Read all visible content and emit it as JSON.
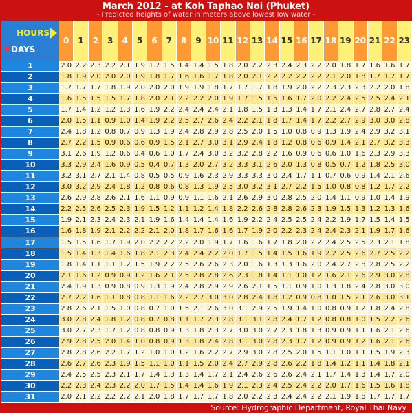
{
  "title": "March 2012 - at Koh Taphao Noi (Phuket)",
  "subtitle": "- Predicted heights of water in meters above lowest low water -",
  "corner": {
    "hours_label": "HOURS",
    "days_label": "DAYS"
  },
  "source": "Source: Hydrographic Department, Royal Thai Navy",
  "colors": {
    "frame": "#cc1111",
    "hour_odd": "#ff9933",
    "hour_even": "#fff07a",
    "day_bg": "#1f86e0",
    "row_light": "#fff8d8",
    "row_dark": "#ffe79a"
  },
  "chart_data": {
    "type": "table",
    "columns": [
      "0",
      "1",
      "2",
      "3",
      "4",
      "5",
      "6",
      "7",
      "8",
      "9",
      "10",
      "11",
      "12",
      "13",
      "14",
      "15",
      "16",
      "17",
      "18",
      "19",
      "20",
      "21",
      "22",
      "23"
    ],
    "rows": [
      "1",
      "2",
      "3",
      "4",
      "5",
      "6",
      "7",
      "8",
      "9",
      "10",
      "11",
      "12",
      "13",
      "14",
      "15",
      "16",
      "17",
      "18",
      "19",
      "20",
      "21",
      "22",
      "23",
      "24",
      "25",
      "26",
      "27",
      "28",
      "29",
      "30",
      "31"
    ],
    "values": [
      [
        "2.0",
        "2.2",
        "2.3",
        "2.2",
        "2.1",
        "1.9",
        "1.7",
        "1.5",
        "1.4",
        "1.4",
        "1.5",
        "1.8",
        "2.0",
        "2.2",
        "2.3",
        "2.4",
        "2.3",
        "2.2",
        "2.0",
        "1.8",
        "1.7",
        "1.6",
        "1.6",
        "1.7"
      ],
      [
        "1.8",
        "1.9",
        "2.0",
        "2.0",
        "2.0",
        "1.9",
        "1.8",
        "1.7",
        "1.6",
        "1.6",
        "1.7",
        "1.8",
        "2.0",
        "2.1",
        "2.2",
        "2.2",
        "2.2",
        "2.2",
        "2.1",
        "2.0",
        "1.8",
        "1.7",
        "1.7",
        "1.7"
      ],
      [
        "1.7",
        "1.7",
        "1.7",
        "1.8",
        "1.9",
        "2.0",
        "2.0",
        "2.0",
        "1.9",
        "1.9",
        "1.8",
        "1.7",
        "1.7",
        "1.7",
        "1.8",
        "1.9",
        "2.0",
        "2.2",
        "2.3",
        "2.3",
        "2.3",
        "2.2",
        "2.0",
        "1.8"
      ],
      [
        "1.6",
        "1.5",
        "1.5",
        "1.5",
        "1.7",
        "1.8",
        "2.0",
        "2.1",
        "2.2",
        "2.2",
        "2.0",
        "1.9",
        "1.7",
        "1.5",
        "1.5",
        "1.6",
        "1.7",
        "2.0",
        "2.2",
        "2.4",
        "2.5",
        "2.5",
        "2.4",
        "2.1"
      ],
      [
        "1.7",
        "1.4",
        "1.2",
        "1.2",
        "1.3",
        "1.6",
        "1.9",
        "2.2",
        "2.4",
        "2.4",
        "2.4",
        "2.1",
        "1.8",
        "1.5",
        "1.3",
        "1.3",
        "1.4",
        "1.7",
        "2.1",
        "2.4",
        "2.7",
        "2.8",
        "2.7",
        "2.4"
      ],
      [
        "2.0",
        "1.5",
        "1.1",
        "0.9",
        "1.0",
        "1.4",
        "1.9",
        "2.2",
        "2.5",
        "2.7",
        "2.6",
        "2.4",
        "2.2",
        "2.1",
        "1.8",
        "1.7",
        "1.4",
        "1.7",
        "2.2",
        "2.7",
        "2.9",
        "3.0",
        "3.0",
        "2.8"
      ],
      [
        "2.4",
        "1.8",
        "1.2",
        "0.8",
        "0.7",
        "0.9",
        "1.3",
        "1.9",
        "2.4",
        "2.8",
        "2.9",
        "2.8",
        "2.5",
        "2.0",
        "1.5",
        "1.0",
        "0.8",
        "0.9",
        "1.3",
        "1.9",
        "2.4",
        "2.9",
        "3.2",
        "3.1"
      ],
      [
        "2.7",
        "2.2",
        "1.5",
        "0.9",
        "0.6",
        "0.6",
        "0.9",
        "1.5",
        "2.1",
        "2.7",
        "3.0",
        "3.1",
        "2.9",
        "2.4",
        "1.8",
        "1.2",
        "0.8",
        "0.6",
        "0.9",
        "1.4",
        "2.1",
        "2.7",
        "3.2",
        "3.3"
      ],
      [
        "3.1",
        "2.6",
        "1.9",
        "1.2",
        "0.6",
        "0.4",
        "0.6",
        "1.0",
        "1.7",
        "2.4",
        "3.0",
        "3.2",
        "3.2",
        "2.8",
        "2.2",
        "1.6",
        "0.9",
        "0.6",
        "0.6",
        "1.0",
        "1.6",
        "2.3",
        "2.9",
        "3.3"
      ],
      [
        "3.3",
        "2.9",
        "2.4",
        "1.6",
        "0.9",
        "0.5",
        "0.4",
        "0.7",
        "1.3",
        "2.0",
        "2.7",
        "3.2",
        "3.3",
        "3.1",
        "2.6",
        "2.0",
        "1.3",
        "0.8",
        "0.5",
        "0.7",
        "1.2",
        "1.8",
        "2.5",
        "3.0"
      ],
      [
        "3.2",
        "3.1",
        "2.7",
        "2.1",
        "1.4",
        "0.8",
        "0.5",
        "0.5",
        "0.9",
        "1.6",
        "2.3",
        "2.9",
        "3.3",
        "3.3",
        "3.0",
        "2.4",
        "1.7",
        "1.1",
        "0.7",
        "0.6",
        "0.9",
        "1.4",
        "2.1",
        "2.6"
      ],
      [
        "3.0",
        "3.2",
        "2.9",
        "2.4",
        "1.8",
        "1.2",
        "0.8",
        "0.6",
        "0.8",
        "1.3",
        "1.9",
        "2.5",
        "3.0",
        "3.2",
        "3.1",
        "2.7",
        "2.2",
        "1.5",
        "1.0",
        "0.8",
        "0.8",
        "1.2",
        "1.7",
        "2.2"
      ],
      [
        "2.6",
        "2.9",
        "2.8",
        "2.6",
        "2.1",
        "1.6",
        "1.1",
        "0.9",
        "0.9",
        "1.1",
        "1.6",
        "2.1",
        "2.6",
        "2.9",
        "3.0",
        "2.8",
        "2.5",
        "2.0",
        "1.4",
        "1.1",
        "0.9",
        "1.0",
        "1.4",
        "1.9"
      ],
      [
        "2.2",
        "2.5",
        "2.6",
        "2.5",
        "2.3",
        "1.9",
        "1.5",
        "1.2",
        "1.1",
        "1.2",
        "1.4",
        "1.8",
        "2.2",
        "2.6",
        "2.8",
        "2.8",
        "2.6",
        "2.3",
        "1.9",
        "1.5",
        "1.3",
        "1.2",
        "1.3",
        "1.6"
      ],
      [
        "1.9",
        "2.1",
        "2.3",
        "2.4",
        "2.3",
        "2.1",
        "1.9",
        "1.6",
        "1.4",
        "1.4",
        "1.4",
        "1.6",
        "1.9",
        "2.2",
        "2.4",
        "2.5",
        "2.5",
        "2.4",
        "2.2",
        "1.9",
        "1.7",
        "1.5",
        "1.4",
        "1.5"
      ],
      [
        "1.6",
        "1.8",
        "1.9",
        "2.1",
        "2.2",
        "2.2",
        "2.1",
        "2.0",
        "1.8",
        "1.7",
        "1.6",
        "1.6",
        "1.7",
        "1.9",
        "2.0",
        "2.2",
        "2.3",
        "2.4",
        "2.4",
        "2.3",
        "2.1",
        "1.9",
        "1.7",
        "1.6"
      ],
      [
        "1.5",
        "1.5",
        "1.6",
        "1.7",
        "1.9",
        "2.0",
        "2.2",
        "2.2",
        "2.2",
        "2.0",
        "1.9",
        "1.7",
        "1.6",
        "1.6",
        "1.7",
        "1.8",
        "2.0",
        "2.2",
        "2.4",
        "2.5",
        "2.5",
        "2.3",
        "2.1",
        "1.8"
      ],
      [
        "1.5",
        "1.4",
        "1.3",
        "1.4",
        "1.6",
        "1.8",
        "2.1",
        "2.3",
        "2.4",
        "2.4",
        "2.2",
        "2.0",
        "1.7",
        "1.5",
        "1.4",
        "1.5",
        "1.6",
        "1.9",
        "2.2",
        "2.5",
        "2.6",
        "2.7",
        "2.5",
        "2.2"
      ],
      [
        "1.8",
        "1.4",
        "1.1",
        "1.1",
        "1.2",
        "1.5",
        "1.9",
        "2.2",
        "2.5",
        "2.6",
        "2.6",
        "2.3",
        "2.0",
        "1.6",
        "1.3",
        "1.3",
        "1.6",
        "2.0",
        "2.4",
        "2.7",
        "2.8",
        "2.8",
        "2.5",
        "2.2"
      ],
      [
        "2.1",
        "1.6",
        "1.2",
        "0.9",
        "0.9",
        "1.2",
        "1.6",
        "2.1",
        "2.5",
        "2.8",
        "2.8",
        "2.6",
        "2.3",
        "1.8",
        "1.4",
        "1.1",
        "1.0",
        "1.2",
        "1.6",
        "2.1",
        "2.6",
        "2.9",
        "3.0",
        "2.8"
      ],
      [
        "2.4",
        "1.9",
        "1.3",
        "0.9",
        "0.8",
        "0.9",
        "1.3",
        "1.9",
        "2.4",
        "2.8",
        "2.9",
        "2.9",
        "2.6",
        "2.1",
        "1.5",
        "1.1",
        "0.9",
        "1.0",
        "1.3",
        "1.8",
        "2.4",
        "2.8",
        "3.0",
        "3.0"
      ],
      [
        "2.7",
        "2.2",
        "1.6",
        "1.1",
        "0.8",
        "0.8",
        "1.1",
        "1.6",
        "2.2",
        "2.7",
        "3.0",
        "3.0",
        "2.8",
        "2.4",
        "1.8",
        "1.2",
        "0.9",
        "0.8",
        "1.0",
        "1.5",
        "2.1",
        "2.6",
        "3.0",
        "3.1"
      ],
      [
        "2.8",
        "2.6",
        "2.1",
        "1.5",
        "1.0",
        "0.8",
        "0.7",
        "1.0",
        "1.5",
        "2.1",
        "2.6",
        "3.0",
        "3.1",
        "2.9",
        "2.5",
        "1.9",
        "1.4",
        "1.0",
        "0.8",
        "0.9",
        "1.2",
        "1.8",
        "2.4",
        "2.8"
      ],
      [
        "3.0",
        "2.8",
        "2.4",
        "1.8",
        "1.2",
        "0.8",
        "0.7",
        "0.8",
        "1.1",
        "1.7",
        "2.3",
        "2.8",
        "3.1",
        "3.1",
        "2.8",
        "2.4",
        "1.7",
        "1.2",
        "0.8",
        "0.8",
        "1.0",
        "1.5",
        "2.2",
        "2.6"
      ],
      [
        "3.0",
        "2.7",
        "2.3",
        "1.7",
        "1.2",
        "0.8",
        "0.8",
        "0.9",
        "1.3",
        "1.8",
        "2.3",
        "2.7",
        "3.0",
        "3.0",
        "2.7",
        "2.3",
        "1.8",
        "1.3",
        "0.9",
        "0.9",
        "1.1",
        "1.6",
        "2.1",
        "2.6"
      ],
      [
        "2.9",
        "2.8",
        "2.5",
        "2.0",
        "1.4",
        "1.0",
        "0.8",
        "0.9",
        "1.3",
        "1.8",
        "2.4",
        "2.8",
        "3.1",
        "3.0",
        "2.8",
        "2.3",
        "1.7",
        "1.2",
        "0.9",
        "0.9",
        "1.2",
        "1.6",
        "2.1",
        "2.6"
      ],
      [
        "2.8",
        "2.8",
        "2.6",
        "2.2",
        "1.7",
        "1.2",
        "1.0",
        "1.0",
        "1.2",
        "1.6",
        "2.2",
        "2.7",
        "2.9",
        "3.0",
        "2.8",
        "2.5",
        "2.0",
        "1.5",
        "1.1",
        "1.0",
        "1.1",
        "1.5",
        "1.9",
        "2.3"
      ],
      [
        "2.6",
        "2.7",
        "2.6",
        "2.3",
        "1.9",
        "1.5",
        "1.1",
        "1.0",
        "1.1",
        "1.5",
        "2.0",
        "2.4",
        "2.7",
        "2.9",
        "2.8",
        "2.6",
        "2.2",
        "1.8",
        "1.4",
        "1.2",
        "1.1",
        "1.4",
        "1.8",
        "2.1"
      ],
      [
        "2.4",
        "2.5",
        "2.5",
        "2.3",
        "2.1",
        "1.7",
        "1.4",
        "1.3",
        "1.3",
        "1.4",
        "1.7",
        "2.1",
        "2.4",
        "2.6",
        "2.6",
        "2.6",
        "2.4",
        "2.1",
        "1.7",
        "1.4",
        "1.3",
        "1.4",
        "1.7",
        "2.0"
      ],
      [
        "2.2",
        "2.3",
        "2.4",
        "2.3",
        "2.2",
        "2.0",
        "1.7",
        "1.5",
        "1.4",
        "1.4",
        "1.6",
        "1.9",
        "2.1",
        "2.3",
        "2.4",
        "2.5",
        "2.4",
        "2.2",
        "2.0",
        "1.7",
        "1.6",
        "1.5",
        "1.6",
        "1.8"
      ],
      [
        "2.0",
        "2.1",
        "2.2",
        "2.2",
        "2.2",
        "2.1",
        "2.0",
        "1.8",
        "1.7",
        "1.7",
        "1.7",
        "1.8",
        "2.0",
        "2.2",
        "2.3",
        "2.4",
        "2.4",
        "2.2",
        "2.1",
        "1.9",
        "1.8",
        "1.7",
        "1.7",
        "1.7"
      ]
    ]
  }
}
